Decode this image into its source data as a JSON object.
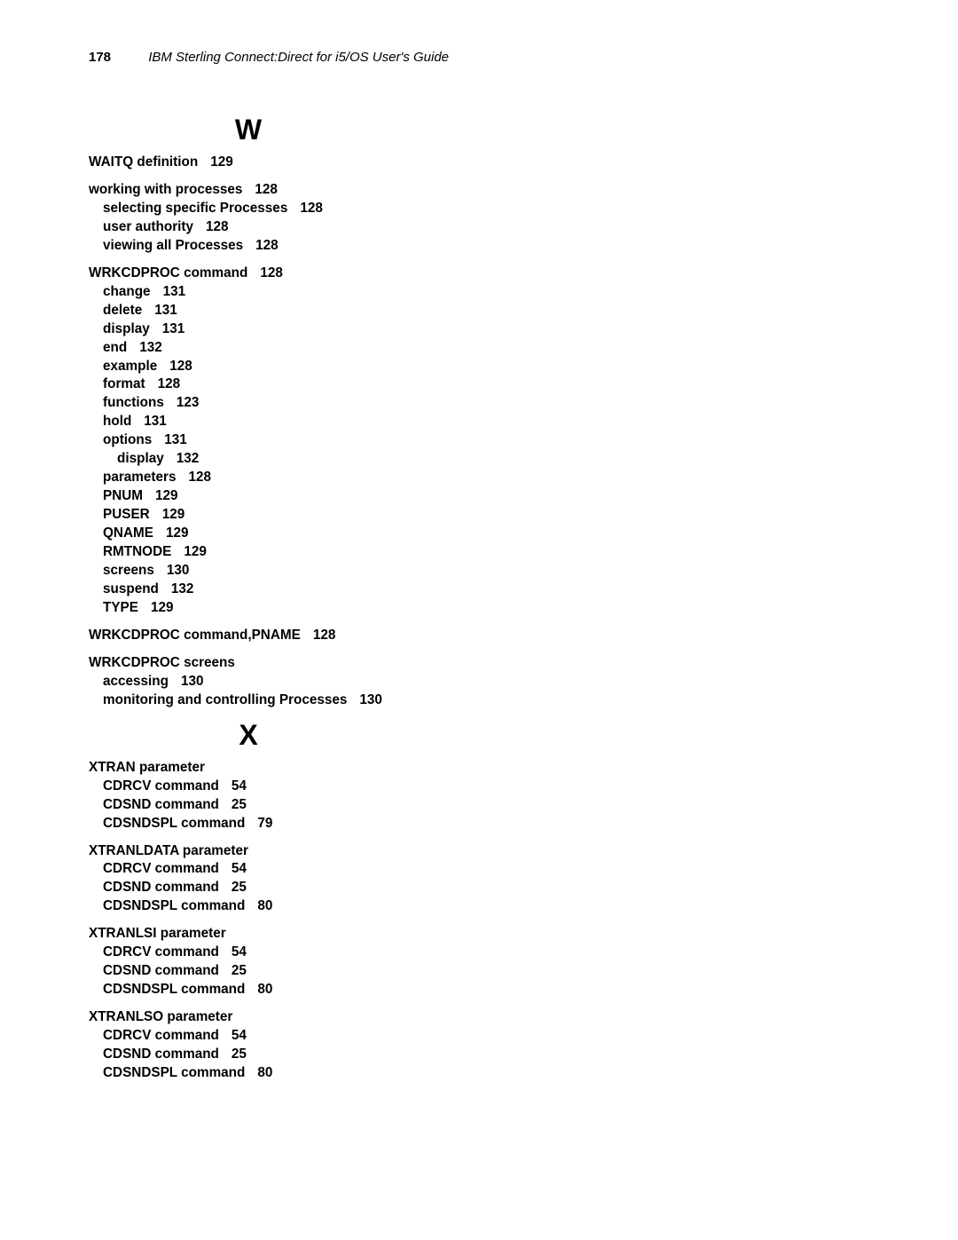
{
  "header": {
    "page_number": "178",
    "doc_title": "IBM Sterling Connect:Direct for i5/OS User's Guide"
  },
  "sections": [
    {
      "letter": "W",
      "groups": [
        {
          "head": {
            "text": "WAITQ definition",
            "page": "129"
          }
        },
        {
          "head": {
            "text": "working with processes",
            "page": "128"
          },
          "sub1": [
            {
              "text": "selecting specific Processes",
              "page": "128"
            },
            {
              "text": "user authority",
              "page": "128"
            },
            {
              "text": "viewing all Processes",
              "page": "128"
            }
          ]
        },
        {
          "head": {
            "text": "WRKCDPROC command",
            "page": "128"
          },
          "sub1": [
            {
              "text": "change",
              "page": "131"
            },
            {
              "text": "delete",
              "page": "131"
            },
            {
              "text": "display",
              "page": "131"
            },
            {
              "text": "end",
              "page": "132"
            },
            {
              "text": "example",
              "page": "128"
            },
            {
              "text": "format",
              "page": "128"
            },
            {
              "text": "functions",
              "page": "123"
            },
            {
              "text": "hold",
              "page": "131"
            },
            {
              "text": "options",
              "page": "131",
              "sub2": [
                {
                  "text": "display",
                  "page": "132"
                }
              ]
            },
            {
              "text": "parameters",
              "page": "128"
            },
            {
              "text": "PNUM",
              "page": "129"
            },
            {
              "text": "PUSER",
              "page": "129"
            },
            {
              "text": "QNAME",
              "page": "129"
            },
            {
              "text": "RMTNODE",
              "page": "129"
            },
            {
              "text": "screens",
              "page": "130"
            },
            {
              "text": "suspend",
              "page": "132"
            },
            {
              "text": "TYPE",
              "page": "129"
            }
          ]
        },
        {
          "head": {
            "text": "WRKCDPROC command,PNAME",
            "page": "128"
          }
        },
        {
          "head": {
            "text": "WRKCDPROC screens"
          },
          "sub1": [
            {
              "text": "accessing",
              "page": "130"
            },
            {
              "text": "monitoring and controlling Processes",
              "page": "130"
            }
          ]
        }
      ]
    },
    {
      "letter": "X",
      "groups": [
        {
          "head": {
            "text": "XTRAN parameter"
          },
          "sub1": [
            {
              "text": "CDRCV command",
              "page": "54"
            },
            {
              "text": "CDSND command",
              "page": "25"
            },
            {
              "text": "CDSNDSPL command",
              "page": "79"
            }
          ]
        },
        {
          "head": {
            "text": "XTRANLDATA parameter"
          },
          "sub1": [
            {
              "text": "CDRCV command",
              "page": "54"
            },
            {
              "text": "CDSND command",
              "page": "25"
            },
            {
              "text": "CDSNDSPL command",
              "page": "80"
            }
          ]
        },
        {
          "head": {
            "text": "XTRANLSI parameter"
          },
          "sub1": [
            {
              "text": "CDRCV command",
              "page": "54"
            },
            {
              "text": "CDSND command",
              "page": "25"
            },
            {
              "text": "CDSNDSPL command",
              "page": "80"
            }
          ]
        },
        {
          "head": {
            "text": "XTRANLSO parameter"
          },
          "sub1": [
            {
              "text": "CDRCV command",
              "page": "54"
            },
            {
              "text": "CDSND command",
              "page": "25"
            },
            {
              "text": "CDSNDSPL command",
              "page": "80"
            }
          ]
        }
      ]
    }
  ]
}
